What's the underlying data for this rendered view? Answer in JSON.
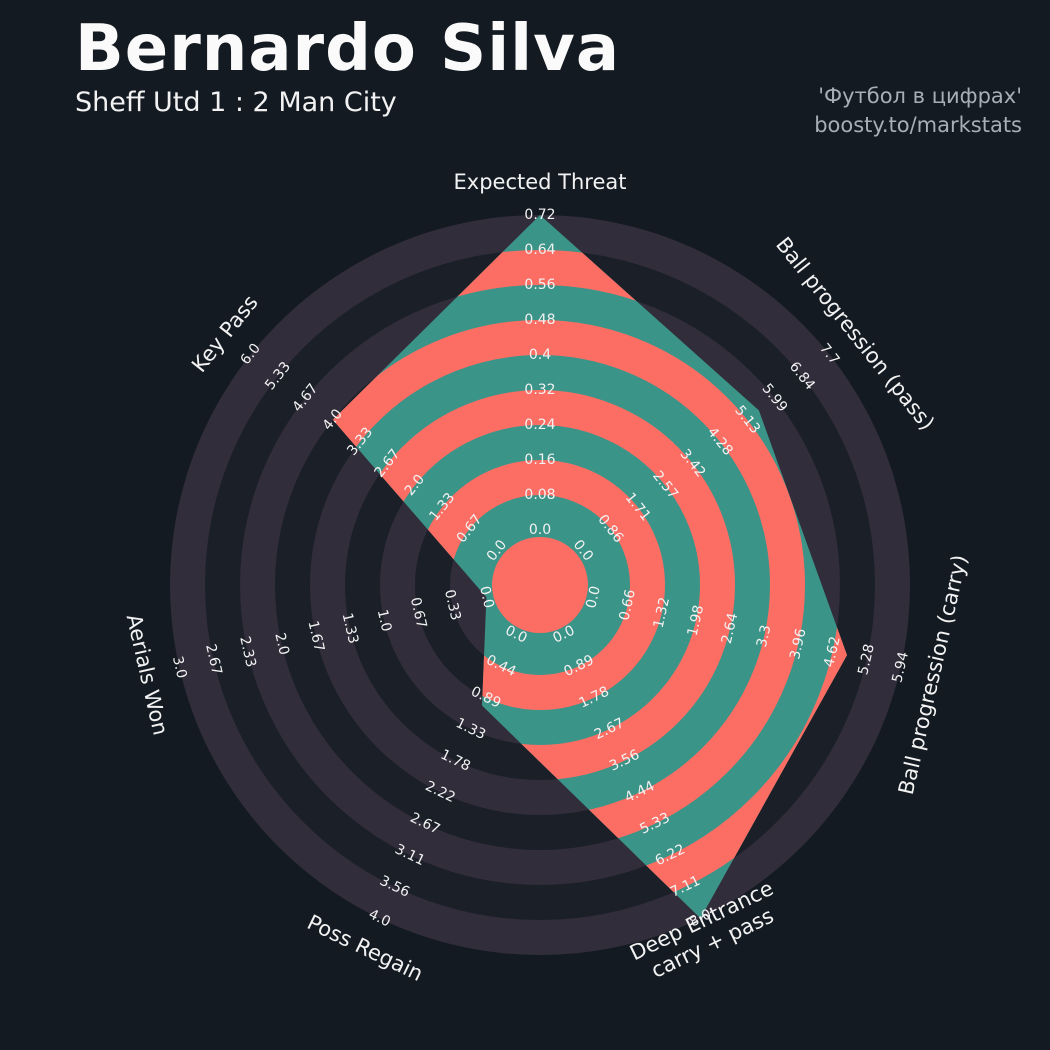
{
  "page": {
    "background": "#131A22"
  },
  "header": {
    "title": "Bernardo Silva",
    "subtitle": "Sheff Utd 1 : 2 Man City",
    "credit_line1": "'Футбол в цифрах'",
    "credit_line2": "boosty.to/markstats"
  },
  "chart_data": {
    "type": "radar",
    "title": "Bernardo Silva",
    "subtitle": "Sheff Utd 1 : 2 Man City",
    "ring_count": 9,
    "grid": "concentric-rings",
    "legend": "none",
    "axes": [
      {
        "label": "Expected Threat",
        "label_lines": [
          "Expected Threat"
        ],
        "min": 0,
        "max": 0.72,
        "value": 0.72,
        "ticks": [
          "0.0",
          "0.08",
          "0.16",
          "0.24",
          "0.32",
          "0.4",
          "0.48",
          "0.56",
          "0.64",
          "0.72"
        ]
      },
      {
        "label": "Ball progression (pass)",
        "label_lines": [
          "Ball progression (pass)"
        ],
        "min": 0,
        "max": 7.7,
        "value": 5.5,
        "ticks": [
          "0.0",
          "0.86",
          "1.71",
          "2.57",
          "3.42",
          "4.28",
          "5.13",
          "5.99",
          "6.84",
          "7.7"
        ]
      },
      {
        "label": "Ball progression (carry)",
        "label_lines": [
          "Ball progression (carry)"
        ],
        "min": 0,
        "max": 5.94,
        "value": 4.9,
        "ticks": [
          "0.0",
          "0.66",
          "1.32",
          "1.98",
          "2.64",
          "3.3",
          "3.96",
          "4.62",
          "5.28",
          "5.94"
        ]
      },
      {
        "label": "Deep Entrance carry + pass",
        "label_lines": [
          "Deep Entrance",
          "carry + pass"
        ],
        "min": 0,
        "max": 8.0,
        "value": 8.0,
        "ticks": [
          "0.0",
          "0.89",
          "1.78",
          "2.67",
          "3.56",
          "4.44",
          "5.33",
          "6.22",
          "7.11",
          "8.0"
        ]
      },
      {
        "label": "Poss Regain",
        "label_lines": [
          "Poss Regain"
        ],
        "min": 0,
        "max": 4.0,
        "value": 1.0,
        "ticks": [
          "0.0",
          "0.44",
          "0.89",
          "1.33",
          "1.78",
          "2.22",
          "2.67",
          "3.11",
          "3.56",
          "4.0"
        ]
      },
      {
        "label": "Aerials Won",
        "label_lines": [
          "Aerials Won"
        ],
        "min": 0,
        "max": 3.0,
        "value": 0.0,
        "ticks": [
          "0.0",
          "0.33",
          "0.67",
          "1.0",
          "1.33",
          "1.67",
          "2.0",
          "2.33",
          "2.67",
          "3.0"
        ]
      },
      {
        "label": "Key Pass",
        "label_lines": [
          "Key Pass"
        ],
        "min": 0,
        "max": 6.0,
        "value": 4.0,
        "ticks": [
          "0.0",
          "0.67",
          "1.33",
          "2.0",
          "2.67",
          "3.33",
          "4.0",
          "4.67",
          "5.33",
          "6.0"
        ]
      }
    ],
    "colors": {
      "background": "#131A22",
      "ring_even": "#1A1F28",
      "ring_odd": "#322D3A",
      "radar_fill": "#3B9488",
      "radar_rings": "#FC6E64",
      "tick_label": "#F2F2F2",
      "axis_label": "#F2F2F2",
      "title": "#FAFAFA",
      "subtitle": "#F2F2F2",
      "credit": "#A6AEB6"
    }
  }
}
